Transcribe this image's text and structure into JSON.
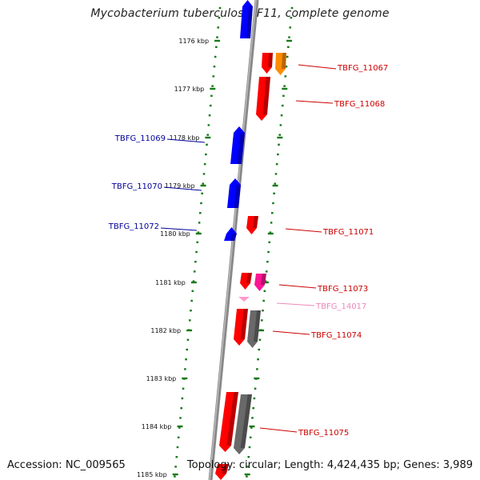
{
  "title": "Mycobacterium tuberculosis F11, complete genome",
  "footer": {
    "accession": "Accession: NC_009565",
    "summary": "Topology: circular; Length: 4,424,435 bp; Genes: 3,989"
  },
  "colors": {
    "forward_gene": "#ff0000",
    "reverse_gene": "#0000ff",
    "rna_gene": "#ff8c00",
    "misc_gene": "#ff1493",
    "pseudogene": "#696969",
    "faint_gene": "#ff99cc",
    "axis": "#777777",
    "ticks": "#1a7a1a",
    "forward_label": "#cc0000",
    "reverse_label": "#000099",
    "faint_label": "#ee88bb"
  },
  "kbp_ticks": [
    "1176 kbp",
    "1177 kbp",
    "1178 kbp",
    "1179 kbp",
    "1180 kbp",
    "1181 kbp",
    "1182 kbp",
    "1183 kbp",
    "1184 kbp",
    "1185 kbp"
  ],
  "gene_labels_right": [
    {
      "text": "TBFG_11067",
      "type": "forward"
    },
    {
      "text": "TBFG_11068",
      "type": "forward"
    },
    {
      "text": "TBFG_11071",
      "type": "forward"
    },
    {
      "text": "TBFG_11073",
      "type": "forward"
    },
    {
      "text": "TBFG_14017",
      "type": "faint"
    },
    {
      "text": "TBFG_11074",
      "type": "forward"
    },
    {
      "text": "TBFG_11075",
      "type": "forward"
    }
  ],
  "gene_labels_left": [
    {
      "text": "TBFG_11069",
      "type": "reverse"
    },
    {
      "text": "TBFG_11070",
      "type": "reverse"
    },
    {
      "text": "TBFG_11072",
      "type": "reverse"
    }
  ]
}
